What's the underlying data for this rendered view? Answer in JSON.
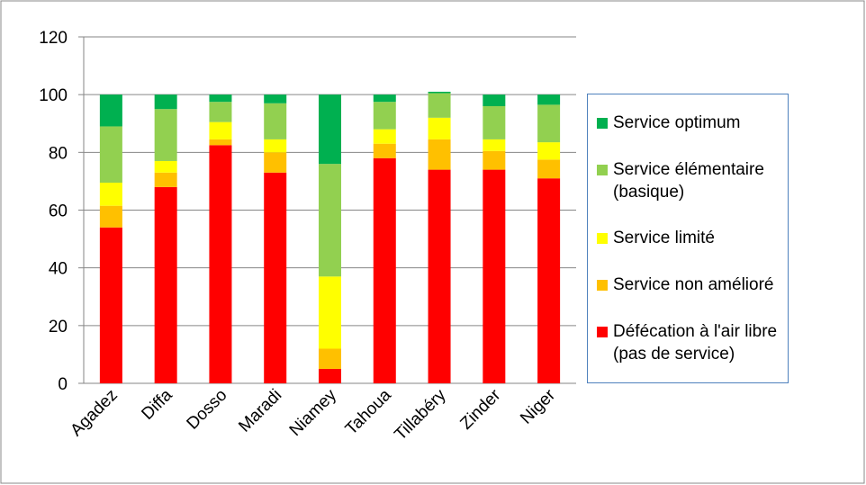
{
  "chart_data": {
    "type": "stacked_bar",
    "categories": [
      "Agadez",
      "Diffa",
      "Dosso",
      "Maradi",
      "Niamey",
      "Tahoua",
      "Tillabéry",
      "Zinder",
      "Niger"
    ],
    "series": [
      {
        "name": "Défécation à l'air libre (pas de service)",
        "color": "#ff0000",
        "values": [
          54,
          68,
          82.5,
          73,
          5,
          78,
          74,
          74,
          71
        ]
      },
      {
        "name": "Service non amélioré",
        "color": "#ffc000",
        "values": [
          7.5,
          5,
          2,
          7,
          7,
          5,
          10.5,
          6.5,
          6.5
        ]
      },
      {
        "name": "Service limité",
        "color": "#ffff00",
        "values": [
          8,
          4,
          6,
          4.5,
          25,
          5,
          7.5,
          4,
          6
        ]
      },
      {
        "name": "Service élémentaire (basique)",
        "color": "#92d050",
        "values": [
          19.5,
          18,
          7,
          12.5,
          39,
          9.5,
          8.5,
          11.5,
          13
        ]
      },
      {
        "name": "Service optimum",
        "color": "#00b050",
        "values": [
          11,
          5,
          2.5,
          3,
          24,
          2.5,
          0.5,
          4,
          3.5
        ]
      }
    ],
    "ylim": [
      0,
      120
    ],
    "yticks": [
      0,
      20,
      40,
      60,
      80,
      100,
      120
    ],
    "grid": true
  }
}
